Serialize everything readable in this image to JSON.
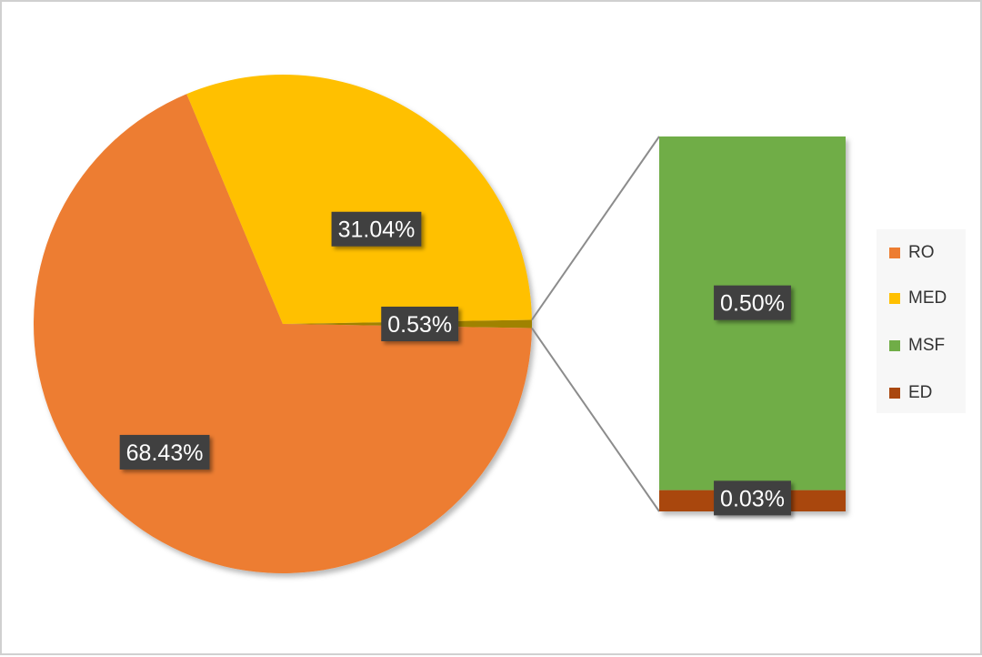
{
  "chart_data": {
    "type": "bar-of-pie",
    "title": "",
    "slices": [
      {
        "name": "RO",
        "value": 68.43,
        "label": "68.43%",
        "color": "#ED7D31"
      },
      {
        "name": "MED",
        "value": 31.04,
        "label": "31.04%",
        "color": "#FFC000"
      },
      {
        "name": "MSF",
        "value": 0.5,
        "label": "0.50%",
        "color": "#70AD47"
      },
      {
        "name": "ED",
        "value": 0.03,
        "label": "0.03%",
        "color": "#A9470E"
      }
    ],
    "other_slice": {
      "value": 0.53,
      "label": "0.53%",
      "color": "#A08200",
      "members": [
        "MSF",
        "ED"
      ]
    },
    "legend": {
      "placement": "right",
      "entries": [
        {
          "name": "RO",
          "color": "#ED7D31"
        },
        {
          "name": "MED",
          "color": "#FFC000"
        },
        {
          "name": "MSF",
          "color": "#70AD47"
        },
        {
          "name": "ED",
          "color": "#A9470E"
        }
      ]
    }
  }
}
